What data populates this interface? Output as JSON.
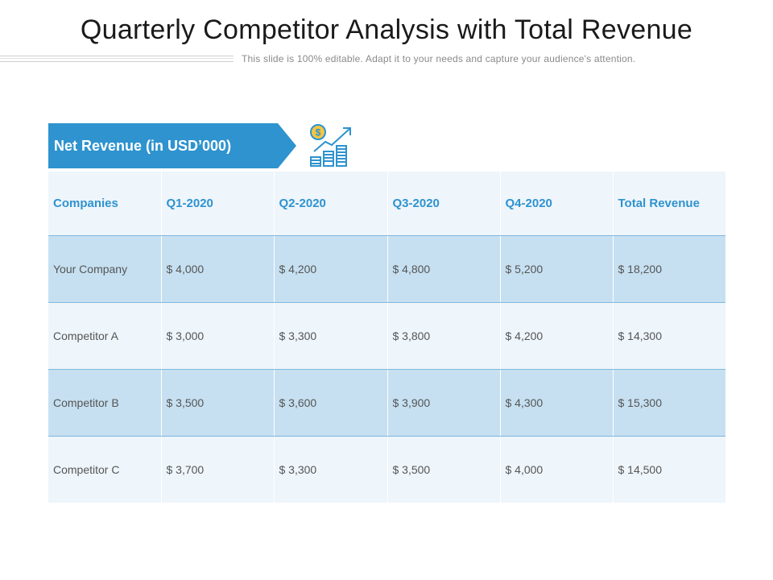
{
  "header": {
    "title": "Quarterly Competitor Analysis with Total Revenue",
    "subtitle": "This slide is 100% editable. Adapt it to your needs and capture your audience's attention."
  },
  "banner": {
    "label": "Net Revenue (in USD’000)",
    "color": "#2e93cf"
  },
  "icon": {
    "name": "revenue-growth-icon",
    "color": "#2e93cf"
  },
  "table": {
    "columns": [
      "Companies",
      "Q1-2020",
      "Q2-2020",
      "Q3-2020",
      "Q4-2020",
      "Total Revenue"
    ],
    "rows": [
      [
        "Your Company",
        "$ 4,000",
        "$ 4,200",
        "$ 4,800",
        "$ 5,200",
        "$ 18,200"
      ],
      [
        "Competitor A",
        "$ 3,000",
        "$ 3,300",
        "$ 3,800",
        "$ 4,200",
        "$ 14,300"
      ],
      [
        "Competitor B",
        "$ 3,500",
        "$ 3,600",
        "$ 3,900",
        "$ 4,300",
        "$ 15,300"
      ],
      [
        "Competitor C",
        "$ 3,700",
        "$ 3,300",
        "$ 3,500",
        "$ 4,000",
        "$ 14,500"
      ]
    ]
  }
}
